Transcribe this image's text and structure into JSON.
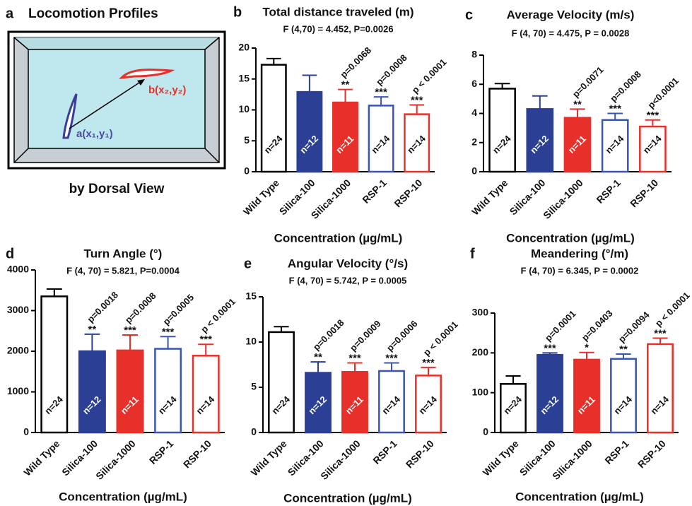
{
  "diagram": {
    "letter": "a",
    "title": "Locomotion Profiles",
    "caption": "by Dorsal View",
    "point_a": "a(x₁,y₁)",
    "point_b": "b(x₂,y₂)"
  },
  "chart_data": [
    {
      "type": "bar",
      "letter": "b",
      "title": "Total distance traveled (m)",
      "subtitle": "F (4,70) = 4.452, P=0.0026",
      "xlabel": "Concentration (µg/mL)",
      "categories": [
        "Wild Type",
        "Silica-100",
        "Silica-1000",
        "RSP-1",
        "RSP-10"
      ],
      "values": [
        17.3,
        12.9,
        11.2,
        10.7,
        9.3
      ],
      "errors": [
        1.0,
        2.7,
        2.1,
        1.4,
        1.5
      ],
      "n_labels": [
        "n=24",
        "n=12",
        "n=11",
        "n=14",
        "n=14"
      ],
      "p_labels": [
        null,
        null,
        "p=0.0068",
        "p=0.0008",
        "p < 0.0001"
      ],
      "stars": [
        null,
        null,
        "**",
        "***",
        "***"
      ],
      "fills": [
        "#ffffff",
        "#2b3f94",
        "#e8302a",
        "#ffffff",
        "#ffffff"
      ],
      "strokes": [
        "#000000",
        "#2b3f94",
        "#e8302a",
        "#3b55b5",
        "#e8302a"
      ],
      "ylim": [
        0,
        20
      ],
      "yticks": [
        0,
        5,
        10,
        15,
        20
      ]
    },
    {
      "type": "bar",
      "letter": "c",
      "title": "Average Velocity (m/s)",
      "subtitle": "F (4, 70) = 4.475, P = 0.0028",
      "xlabel": "Concentration (µg/mL)",
      "categories": [
        "Wild Type",
        "Silica-100",
        "Silica-1000",
        "RSP-1",
        "RSP-10"
      ],
      "values": [
        5.7,
        4.3,
        3.7,
        3.55,
        3.1
      ],
      "errors": [
        0.35,
        0.9,
        0.6,
        0.45,
        0.45
      ],
      "n_labels": [
        "n=24",
        "n=12",
        "n=11",
        "n=14",
        "n=14"
      ],
      "p_labels": [
        null,
        null,
        "p=0.0071",
        "p=0.0008",
        "p<0.0001"
      ],
      "stars": [
        null,
        null,
        "**",
        "***",
        "***"
      ],
      "fills": [
        "#ffffff",
        "#2b3f94",
        "#e8302a",
        "#ffffff",
        "#ffffff"
      ],
      "strokes": [
        "#000000",
        "#2b3f94",
        "#e8302a",
        "#3b55b5",
        "#e8302a"
      ],
      "ylim": [
        0,
        8
      ],
      "yticks": [
        0,
        2,
        4,
        6,
        8
      ]
    },
    {
      "type": "bar",
      "letter": "d",
      "title": "Turn Angle (°)",
      "subtitle": "F (4, 70) = 5.821, P=0.0004",
      "xlabel": "Concentration (µg/mL)",
      "categories": [
        "Wild Type",
        "Silica-100",
        "Silica-1000",
        "RSP-1",
        "RSP-10"
      ],
      "values": [
        3350,
        2000,
        2020,
        2060,
        1890
      ],
      "errors": [
        180,
        420,
        380,
        300,
        280
      ],
      "n_labels": [
        "n=24",
        "n=12",
        "n=11",
        "n=14",
        "n=14"
      ],
      "p_labels": [
        null,
        "p=0.0018",
        "p=0.0008",
        "p=0.0005",
        "p < 0.0001"
      ],
      "stars": [
        null,
        "**",
        "***",
        "***",
        "***"
      ],
      "fills": [
        "#ffffff",
        "#2b3f94",
        "#e8302a",
        "#ffffff",
        "#ffffff"
      ],
      "strokes": [
        "#000000",
        "#2b3f94",
        "#e8302a",
        "#3b55b5",
        "#e8302a"
      ],
      "ylim": [
        0,
        4000
      ],
      "yticks": [
        0,
        1000,
        2000,
        3000,
        4000
      ]
    },
    {
      "type": "bar",
      "letter": "e",
      "title": "Angular Velocity (°/s)",
      "subtitle": "F (4, 70) = 5.742, P = 0.0005",
      "xlabel": "Concentration (µg/mL)",
      "categories": [
        "Wild Type",
        "Silica-100",
        "Silica-1000",
        "RSP-1",
        "RSP-10"
      ],
      "values": [
        11.1,
        6.6,
        6.7,
        6.8,
        6.3
      ],
      "errors": [
        0.6,
        1.2,
        1.0,
        0.9,
        0.9
      ],
      "n_labels": [
        "n=24",
        "n=12",
        "n=11",
        "n=14",
        "n=14"
      ],
      "p_labels": [
        null,
        "p=0.0018",
        "p=0.0009",
        "p=0.0006",
        "p < 0.0001"
      ],
      "stars": [
        null,
        "**",
        "***",
        "***",
        "***"
      ],
      "fills": [
        "#ffffff",
        "#2b3f94",
        "#e8302a",
        "#ffffff",
        "#ffffff"
      ],
      "strokes": [
        "#000000",
        "#2b3f94",
        "#e8302a",
        "#3b55b5",
        "#e8302a"
      ],
      "ylim": [
        0,
        15
      ],
      "yticks": [
        0,
        5,
        10,
        15
      ]
    },
    {
      "type": "bar",
      "letter": "f",
      "title": "Meandering (°/m)",
      "subtitle": "F (4, 70) = 6.345, P = 0.0002",
      "xlabel": "Concentration (µg/mL)",
      "categories": [
        "Wild Type",
        "Silica-100",
        "Silica-1000",
        "RSP-1",
        "RSP-10"
      ],
      "values": [
        122,
        195,
        183,
        185,
        222
      ],
      "errors": [
        20,
        5,
        18,
        12,
        15
      ],
      "n_labels": [
        "n=24",
        "n=12",
        "n=11",
        "n=14",
        "n=14"
      ],
      "p_labels": [
        null,
        "p=0.0001",
        "p=0.0403",
        "p=0.0094",
        "p < 0.0001"
      ],
      "stars": [
        null,
        "***",
        "*",
        "**",
        "***"
      ],
      "fills": [
        "#ffffff",
        "#2b3f94",
        "#e8302a",
        "#ffffff",
        "#ffffff"
      ],
      "strokes": [
        "#000000",
        "#2b3f94",
        "#e8302a",
        "#3b55b5",
        "#e8302a"
      ],
      "ylim": [
        0,
        300
      ],
      "yticks": [
        0,
        100,
        200,
        300
      ]
    }
  ]
}
